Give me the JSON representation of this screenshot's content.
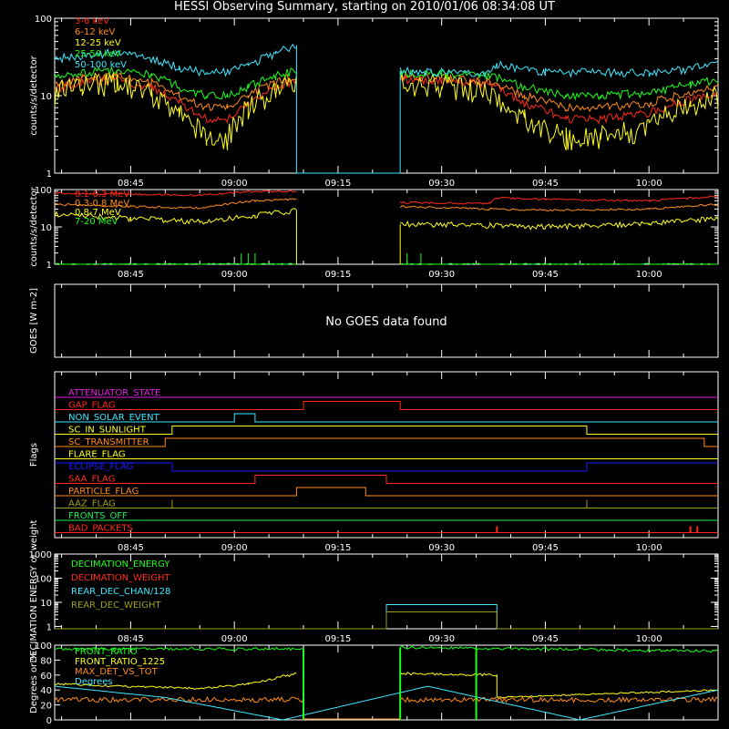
{
  "title": "HESSI Observing Summary, starting on 2010/01/06 08:34:08 UT",
  "time_ticks": [
    "08:45",
    "09:00",
    "09:15",
    "09:30",
    "09:45",
    "10:00"
  ],
  "colors": {
    "red": "#ff2a1a",
    "orange": "#ff8c1a",
    "yellow": "#ffff1a",
    "green": "#1aff1a",
    "cyan": "#3de8ff",
    "magenta": "#e020e0",
    "blue": "#1a1aff",
    "olive": "#a0a020",
    "lightgreen": "#22ee55"
  },
  "chart_data": [
    {
      "type": "line",
      "ylabel": "counts/s/detector",
      "yscale": "log",
      "ylim": [
        1,
        100
      ],
      "ytick_labels": [
        "1",
        "10",
        "100"
      ],
      "legend": "top-left",
      "series": [
        {
          "name": "3-6 keV",
          "color": "red",
          "x": [
            "08:34",
            "08:38",
            "08:43",
            "08:48",
            "08:52",
            "08:56",
            "08:59",
            "09:02",
            "09:06",
            "09:09",
            "09:24",
            "09:30",
            "09:37",
            "09:42",
            "09:48",
            "09:53",
            "10:00",
            "10:06",
            "10:10"
          ],
          "y": [
            12,
            15,
            16,
            13,
            8,
            5,
            5,
            8,
            13,
            16,
            16,
            16,
            14,
            8,
            5,
            5,
            6,
            9,
            11
          ]
        },
        {
          "name": "6-12 keV",
          "color": "orange",
          "x": [
            "08:34",
            "08:38",
            "08:43",
            "08:48",
            "08:52",
            "08:56",
            "08:59",
            "09:02",
            "09:06",
            "09:09",
            "09:24",
            "09:30",
            "09:37",
            "09:42",
            "09:48",
            "09:53",
            "10:00",
            "10:06",
            "10:10"
          ],
          "y": [
            14,
            17,
            18,
            15,
            10,
            7,
            7,
            10,
            15,
            18,
            18,
            17,
            15,
            10,
            7,
            7,
            8,
            11,
            13
          ]
        },
        {
          "name": "12-25 keV",
          "color": "yellow",
          "x": [
            "08:34",
            "08:38",
            "08:43",
            "08:48",
            "08:52",
            "08:56",
            "08:59",
            "09:02",
            "09:06",
            "09:09",
            "09:24",
            "09:30",
            "09:37",
            "09:42",
            "09:48",
            "09:53",
            "10:00",
            "10:06",
            "10:10"
          ],
          "y": [
            11,
            14,
            15,
            11,
            6,
            3,
            3,
            7,
            12,
            15,
            15,
            14,
            11,
            5,
            3,
            3,
            4,
            8,
            10
          ]
        },
        {
          "name": "25-50 keV",
          "color": "green",
          "x": [
            "08:34",
            "08:38",
            "08:43",
            "08:48",
            "08:52",
            "08:56",
            "08:59",
            "09:02",
            "09:06",
            "09:09",
            "09:24",
            "09:30",
            "09:37",
            "09:42",
            "09:48",
            "09:53",
            "10:00",
            "10:06",
            "10:10"
          ],
          "y": [
            18,
            20,
            21,
            19,
            13,
            10,
            10,
            13,
            18,
            21,
            19,
            19,
            18,
            13,
            10,
            10,
            11,
            14,
            16
          ]
        },
        {
          "name": "50-100 keV",
          "color": "cyan",
          "x": [
            "08:34",
            "08:38",
            "08:43",
            "08:48",
            "08:52",
            "08:56",
            "08:59",
            "09:02",
            "09:06",
            "09:09",
            "09:24",
            "09:30",
            "09:37",
            "09:38",
            "09:45",
            "10:00",
            "10:06",
            "10:10"
          ],
          "y": [
            30,
            33,
            36,
            30,
            23,
            20,
            20,
            25,
            35,
            45,
            21,
            20,
            19,
            25,
            20,
            20,
            22,
            27
          ]
        }
      ]
    },
    {
      "type": "line",
      "ylabel": "counts/s/detector",
      "yscale": "log",
      "ylim": [
        1,
        100
      ],
      "ytick_labels": [
        "1",
        "10",
        "100"
      ],
      "legend": "top-left",
      "series": [
        {
          "name": "0.1-0.3 MeV",
          "color": "red",
          "x": [
            "08:34",
            "08:45",
            "08:55",
            "09:03",
            "09:09",
            "09:24",
            "09:37",
            "09:38",
            "09:45",
            "10:00",
            "10:10"
          ],
          "y": [
            80,
            75,
            70,
            90,
            90,
            45,
            42,
            60,
            55,
            50,
            65
          ]
        },
        {
          "name": "0.3-0.8 MeV",
          "color": "orange",
          "x": [
            "08:34",
            "08:45",
            "08:55",
            "09:03",
            "09:09",
            "09:24",
            "09:37",
            "09:45",
            "10:00",
            "10:10"
          ],
          "y": [
            40,
            35,
            32,
            50,
            55,
            35,
            30,
            28,
            30,
            40
          ]
        },
        {
          "name": "0.8-7 MeV",
          "color": "yellow",
          "x": [
            "08:34",
            "08:45",
            "08:55",
            "09:03",
            "09:09",
            "09:24",
            "09:37",
            "09:45",
            "10:00",
            "10:10"
          ],
          "y": [
            22,
            17,
            14,
            20,
            28,
            12,
            11,
            10,
            12,
            17
          ]
        },
        {
          "name": "7-20 MeV",
          "color": "green",
          "x": [
            "08:34",
            "09:09",
            "09:24",
            "10:10"
          ],
          "y": [
            1,
            1,
            1,
            1
          ]
        }
      ]
    },
    {
      "type": "line",
      "ylabel": "GOES [W m-2]",
      "note": "No GOES data found",
      "series": []
    },
    {
      "type": "line",
      "ylabel": "Flags",
      "legend": "inline-left",
      "series": [
        {
          "name": "ATTENUATOR_STATE",
          "color": "magenta",
          "x": [
            "08:34",
            "10:10"
          ],
          "y": [
            0,
            0
          ]
        },
        {
          "name": "GAP_FLAG",
          "color": "red",
          "x": [
            "08:34",
            "09:10",
            "09:10",
            "09:24",
            "09:24",
            "10:10"
          ],
          "y": [
            0,
            0,
            1,
            1,
            0,
            0
          ]
        },
        {
          "name": "NON_SOLAR_EVENT",
          "color": "cyan",
          "x": [
            "08:34",
            "09:00",
            "09:00",
            "09:03",
            "09:03",
            "10:10"
          ],
          "y": [
            0,
            0,
            1,
            1,
            0,
            0
          ]
        },
        {
          "name": "SC_IN_SUNLIGHT",
          "color": "yellow",
          "x": [
            "08:34",
            "08:51",
            "08:51",
            "09:51",
            "09:51",
            "10:10"
          ],
          "y": [
            0,
            0,
            1,
            1,
            0,
            0
          ]
        },
        {
          "name": "SC_TRANSMITTER",
          "color": "orange",
          "x": [
            "08:34",
            "08:50",
            "08:50",
            "10:08",
            "10:08",
            "10:10"
          ],
          "y": [
            0,
            0,
            1,
            1,
            0,
            0
          ]
        },
        {
          "name": "FLARE_FLAG",
          "color": "yellow",
          "x": [
            "08:34",
            "10:10"
          ],
          "y": [
            0,
            0
          ]
        },
        {
          "name": "ECLIPSE_FLAG",
          "color": "blue",
          "x": [
            "08:34",
            "08:51",
            "08:51",
            "09:51",
            "09:51",
            "10:10"
          ],
          "y": [
            1,
            1,
            0,
            0,
            1,
            1
          ]
        },
        {
          "name": "SAA_FLAG",
          "color": "red",
          "x": [
            "08:34",
            "09:03",
            "09:03",
            "09:22",
            "09:22",
            "10:10"
          ],
          "y": [
            0,
            0,
            1,
            1,
            0,
            0
          ]
        },
        {
          "name": "PARTICLE_FLAG",
          "color": "orange",
          "x": [
            "08:34",
            "09:09",
            "09:09",
            "09:19",
            "09:19",
            "10:10"
          ],
          "y": [
            0,
            0,
            1,
            1,
            0,
            0
          ]
        },
        {
          "name": "AAZ_FLAG",
          "color": "olive",
          "x": [
            "08:34",
            "08:51",
            "08:51",
            "08:51",
            "09:51",
            "09:51",
            "09:51",
            "10:10"
          ],
          "y": [
            0,
            0,
            1,
            0,
            0,
            1,
            0,
            0
          ]
        },
        {
          "name": "FRONTS_OFF",
          "color": "lightgreen",
          "x": [
            "08:34",
            "10:10"
          ],
          "y": [
            0,
            0
          ]
        },
        {
          "name": "BAD_PACKETS",
          "color": "red",
          "x": [
            "09:38",
            "10:06",
            "10:07"
          ],
          "y": [
            1,
            1,
            1
          ]
        }
      ]
    },
    {
      "type": "line",
      "ylabel": "DECIMATION ENERGY or weight",
      "yscale": "log",
      "ylim": [
        0.8,
        1000
      ],
      "ytick_labels": [
        "1",
        "10",
        "100",
        "1000"
      ],
      "legend": "top-left",
      "series": [
        {
          "name": "DECIMATION_ENERGY",
          "color": "green",
          "x": [
            "08:34",
            "10:10"
          ],
          "y": [
            0,
            0
          ]
        },
        {
          "name": "DECIMATION_WEIGHT",
          "color": "red",
          "x": [
            "08:34",
            "10:10"
          ],
          "y": [
            0,
            0
          ]
        },
        {
          "name": "REAR_DEC_CHAN/128",
          "color": "cyan",
          "x": [
            "08:34",
            "09:22",
            "09:22",
            "09:38",
            "09:38",
            "10:10"
          ],
          "y": [
            1,
            1,
            8,
            8,
            1,
            1
          ]
        },
        {
          "name": "REAR_DEC_WEIGHT",
          "color": "olive",
          "x": [
            "08:34",
            "09:22",
            "09:22",
            "09:38",
            "09:38",
            "10:10"
          ],
          "y": [
            1,
            1,
            4,
            4,
            1,
            1
          ]
        }
      ]
    },
    {
      "type": "line",
      "ylabel": "Degrees or %",
      "ylim": [
        0,
        100
      ],
      "ytick_labels": [
        "0",
        "20",
        "40",
        "60",
        "80",
        "100"
      ],
      "legend": "top-left",
      "series": [
        {
          "name": "FRONT_RATIO",
          "color": "green",
          "x": [
            "08:34",
            "09:10",
            "09:24",
            "10:10"
          ],
          "y": [
            95,
            95,
            97,
            92
          ]
        },
        {
          "name": "FRONT_RATIO_1225",
          "color": "yellow",
          "x": [
            "08:34",
            "08:55",
            "09:02",
            "09:09",
            "09:24",
            "09:38",
            "09:38",
            "10:10"
          ],
          "y": [
            48,
            42,
            48,
            62,
            62,
            60,
            30,
            40
          ]
        },
        {
          "name": "MAX_DET_VS_TOT",
          "color": "orange",
          "x": [
            "08:34",
            "09:10",
            "09:24",
            "10:10"
          ],
          "y": [
            27,
            27,
            27,
            27
          ]
        },
        {
          "name": "Degrees",
          "color": "cyan",
          "x": [
            "08:34",
            "08:50",
            "09:07",
            "09:28",
            "09:50",
            "10:10"
          ],
          "y": [
            45,
            30,
            0,
            45,
            0,
            40
          ]
        }
      ]
    }
  ]
}
